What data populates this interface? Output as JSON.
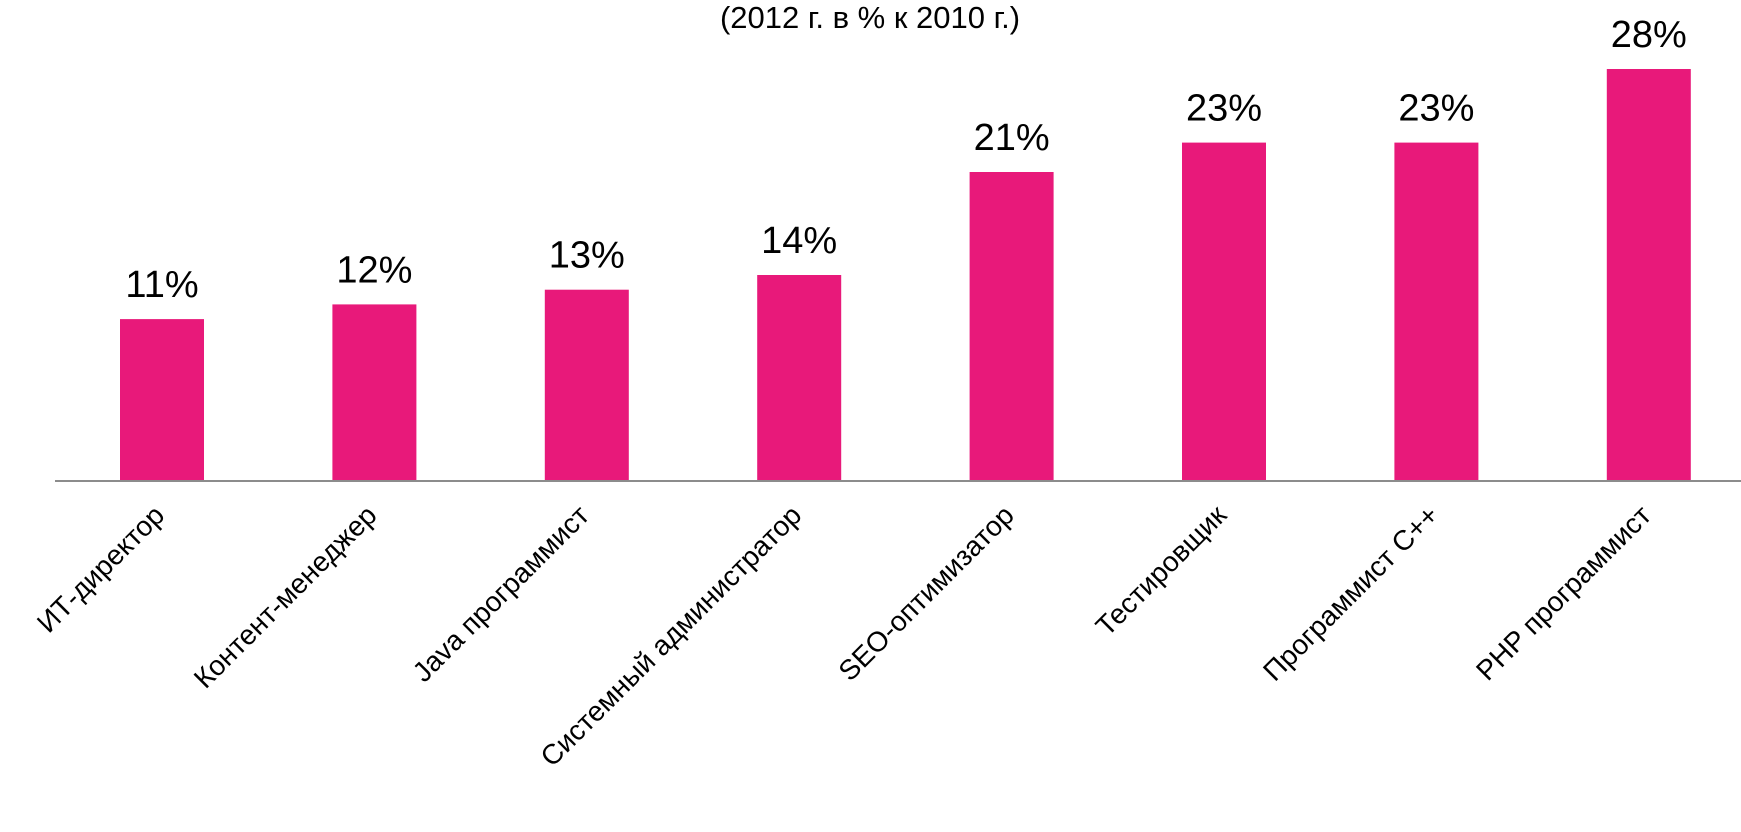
{
  "chart_data": {
    "type": "bar",
    "subtitle": "(2012 г. в % к 2010 г.)",
    "categories": [
      "ИТ-директор",
      "Контент-менеджер",
      "Java программист",
      "Системный администратор",
      "SEO-оптимизатор",
      "Тестировщик",
      "Программист С++",
      "PHP программист"
    ],
    "values": [
      11,
      12,
      13,
      14,
      21,
      23,
      23,
      28
    ],
    "value_labels": [
      "11%",
      "12%",
      "13%",
      "14%",
      "21%",
      "23%",
      "23%",
      "28%"
    ],
    "value_suffix": "%",
    "ylim": [
      0,
      28
    ],
    "grid": false,
    "legend": "none",
    "bar_color": "#E8197A",
    "axis_color": "#8C8C8C"
  }
}
